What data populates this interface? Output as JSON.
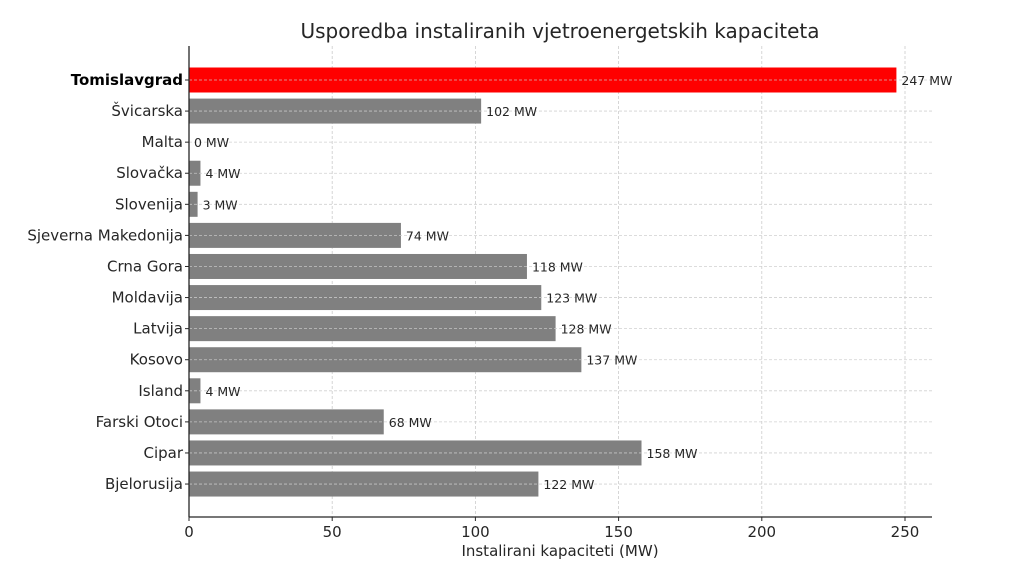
{
  "chart_data": {
    "type": "bar",
    "orientation": "horizontal",
    "title": "Usporedba instaliranih vjetroenergetskih kapaciteta",
    "xlabel": "Instalirani kapaciteti (MW)",
    "ylabel": "",
    "xlim": [
      0,
      259.4
    ],
    "xticks": [
      0,
      50,
      100,
      150,
      200,
      250
    ],
    "grid": true,
    "legend": null,
    "categories": [
      "Tomislavgrad",
      "Švicarska",
      "Malta",
      "Slovačka",
      "Slovenija",
      "Sjeverna Makedonija",
      "Crna Gora",
      "Moldavija",
      "Latvija",
      "Kosovo",
      "Island",
      "Farski Otoci",
      "Cipar",
      "Bjelorusija"
    ],
    "values": [
      247,
      102,
      0,
      4,
      3,
      74,
      118,
      123,
      128,
      137,
      4,
      68,
      158,
      122
    ],
    "value_labels": [
      "247 MW",
      "102 MW",
      "0 MW",
      "4 MW",
      "3 MW",
      "74 MW",
      "118 MW",
      "123 MW",
      "128 MW",
      "137 MW",
      "4 MW",
      "68 MW",
      "158 MW",
      "122 MW"
    ],
    "highlight": {
      "category": "Tomislavgrad",
      "bold_label": true
    },
    "colors": {
      "highlight": "#ff0000",
      "default": "#808080",
      "text": "#262626",
      "grid": "#cccccc",
      "axis": "#262626"
    }
  }
}
